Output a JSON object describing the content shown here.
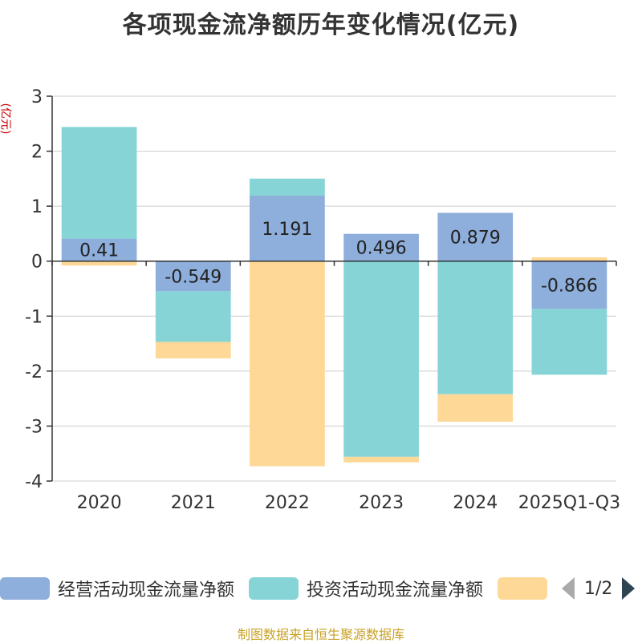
{
  "chart_data": {
    "type": "bar",
    "stacked": true,
    "title": "各项现金流净额历年变化情况(亿元)",
    "ylabel": "(亿元)",
    "ylim": [
      -4,
      3
    ],
    "yticks": [
      "3",
      "2",
      "1",
      "0",
      "-1",
      "-2",
      "-3",
      "-4"
    ],
    "categories": [
      "2020",
      "2021",
      "2022",
      "2023",
      "2024",
      "2025Q1-Q3"
    ],
    "series": [
      {
        "name": "经营活动现金流量净额",
        "color": "#8eaedb",
        "values": [
          0.41,
          -0.549,
          1.191,
          0.496,
          0.879,
          -0.866
        ],
        "show_labels": true,
        "labels": [
          "0.41",
          "-0.549",
          "1.191",
          "0.496",
          "0.879",
          "-0.866"
        ]
      },
      {
        "name": "投资活动现金流量净额",
        "color": "#86d4d6",
        "values": [
          2.03,
          -0.92,
          0.31,
          -3.56,
          -2.42,
          -1.2
        ],
        "show_labels": false
      },
      {
        "name": "",
        "color": "#fed896",
        "values": [
          -0.08,
          -0.3,
          -3.73,
          -0.1,
          -0.5,
          0.07
        ],
        "show_labels": false
      }
    ],
    "legend_position": "bottom",
    "grid": true
  },
  "legend": {
    "page_text": "1/2"
  },
  "source": "制图数据来自恒生聚源数据库"
}
